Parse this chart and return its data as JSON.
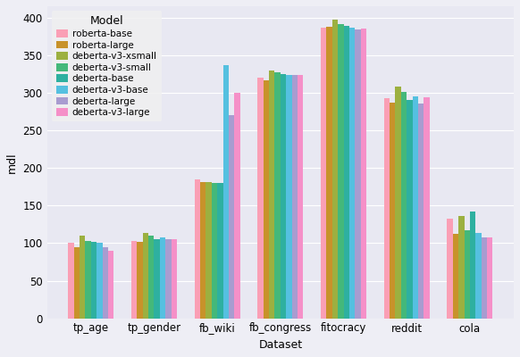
{
  "xlabel": "Dataset",
  "ylabel": "mdl",
  "datasets": [
    "tp_age",
    "tp_gender",
    "fb_wiki",
    "fb_congress",
    "fitocracy",
    "reddit",
    "cola"
  ],
  "models": [
    "roberta-base",
    "roberta-large",
    "deberta-v3-xsmall",
    "deberta-v3-small",
    "deberta-base",
    "deberta-v3-base",
    "deberta-large",
    "deberta-v3-large"
  ],
  "colors": [
    "#FA9FB5",
    "#C8922A",
    "#9CB040",
    "#44B87A",
    "#2EB0A0",
    "#55C0E0",
    "#A89CD0",
    "#F590C8"
  ],
  "values": {
    "tp_age": [
      101,
      95,
      110,
      103,
      102,
      100,
      95,
      90
    ],
    "tp_gender": [
      103,
      102,
      113,
      110,
      105,
      107,
      105,
      105
    ],
    "fb_wiki": [
      185,
      181,
      181,
      180,
      180,
      337,
      270,
      300
    ],
    "fb_congress": [
      320,
      316,
      330,
      327,
      325,
      324,
      323,
      324
    ],
    "fitocracy": [
      386,
      388,
      397,
      391,
      389,
      387,
      384,
      385
    ],
    "reddit": [
      293,
      287,
      308,
      301,
      290,
      295,
      285,
      294
    ],
    "cola": [
      132,
      112,
      136,
      117,
      142,
      113,
      108,
      107
    ]
  },
  "ylim": [
    0,
    415
  ],
  "yticks": [
    0,
    50,
    100,
    150,
    200,
    250,
    300,
    350,
    400
  ],
  "background_color": "#E8E8F2",
  "fig_color": "#EEEEF5",
  "legend_bg_color": "#F0F0F0",
  "bar_width": 0.09,
  "figsize": [
    5.82,
    4.0
  ],
  "dpi": 100,
  "title_fontsize": 13,
  "axis_fontsize": 9,
  "tick_fontsize": 8.5,
  "legend_fontsize": 7.5,
  "legend_title_fontsize": 9
}
